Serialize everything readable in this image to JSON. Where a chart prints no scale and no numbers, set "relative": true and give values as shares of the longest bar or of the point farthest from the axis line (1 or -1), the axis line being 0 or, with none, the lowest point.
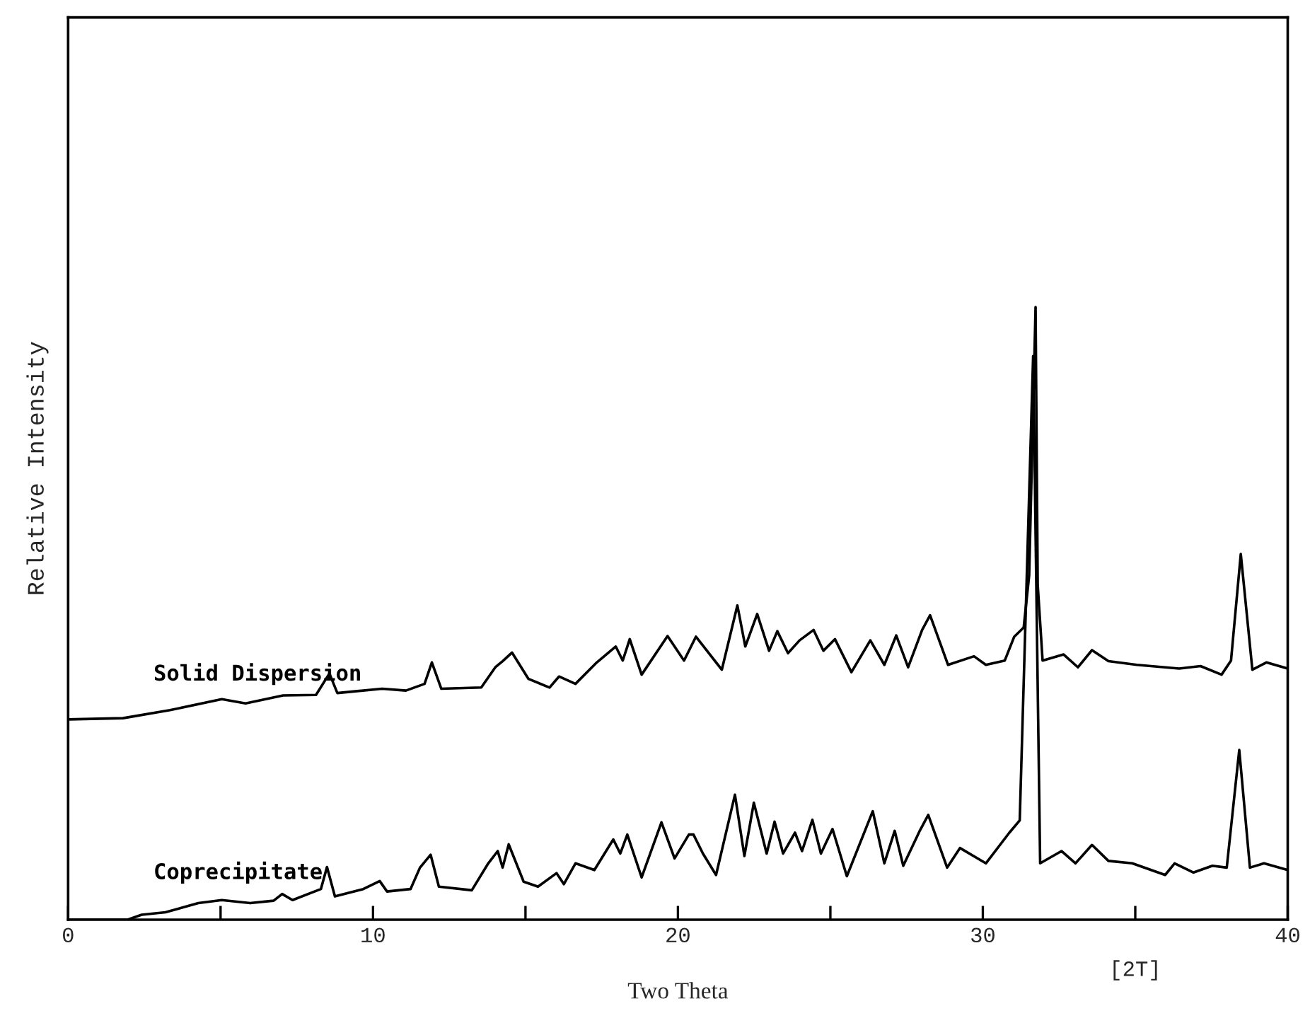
{
  "chart_data": {
    "type": "line",
    "xlabel": "Two Theta",
    "ylabel": "Relative Intensity",
    "relative": true,
    "xlim": [
      0,
      40
    ],
    "xticks": [
      0,
      {
        "value": 5,
        "label": null
      },
      10,
      {
        "value": 15,
        "label": null
      },
      20,
      {
        "value": 25,
        "label": null
      },
      30,
      {
        "value": 35,
        "label": null
      },
      40
    ],
    "annotations": [
      "[2T]"
    ],
    "grid": false,
    "legend": false,
    "marker": "none",
    "line_style": "solid",
    "series": [
      {
        "name": "Solid Dispersion",
        "color": "#000000",
        "x": [
          0,
          1.8,
          3.34,
          5.04,
          5.82,
          7.05,
          8.13,
          8.57,
          8.83,
          10.3,
          11.08,
          11.69,
          11.93,
          12.24,
          13.55,
          14.01,
          14.25,
          14.56,
          15.1,
          15.79,
          16.1,
          16.64,
          17.34,
          17.96,
          18.19,
          18.42,
          18.81,
          19.66,
          20.2,
          20.59,
          21.44,
          21.95,
          22.21,
          22.6,
          22.99,
          23.26,
          23.61,
          23.99,
          24.45,
          24.77,
          25.15,
          25.69,
          26.31,
          26.77,
          27.16,
          27.55,
          28.01,
          28.27,
          28.86,
          29.71,
          30.1,
          30.72,
          31.03,
          31.34,
          31.52,
          31.73,
          31.8,
          31.96,
          32.65,
          33.12,
          33.58,
          34.12,
          35.05,
          36.44,
          37.14,
          37.83,
          38.14,
          38.46,
          38.84,
          39.3,
          40
        ],
        "values": [
          0.327,
          0.329,
          0.342,
          0.36,
          0.353,
          0.366,
          0.367,
          0.402,
          0.37,
          0.377,
          0.374,
          0.385,
          0.42,
          0.377,
          0.379,
          0.412,
          0.422,
          0.436,
          0.393,
          0.379,
          0.397,
          0.385,
          0.42,
          0.446,
          0.423,
          0.458,
          0.4,
          0.463,
          0.423,
          0.462,
          0.408,
          0.513,
          0.446,
          0.499,
          0.439,
          0.471,
          0.435,
          0.456,
          0.473,
          0.439,
          0.458,
          0.404,
          0.456,
          0.416,
          0.464,
          0.412,
          0.473,
          0.497,
          0.416,
          0.43,
          0.416,
          0.423,
          0.462,
          0.477,
          0.562,
          1.0,
          0.547,
          0.423,
          0.433,
          0.412,
          0.44,
          0.422,
          0.416,
          0.41,
          0.414,
          0.4,
          0.423,
          0.597,
          0.408,
          0.42,
          0.41
        ]
      },
      {
        "name": "Coprecipitate",
        "color": "#000000",
        "x": [
          0,
          1.95,
          2.41,
          3.19,
          4.27,
          5.04,
          5.97,
          6.74,
          7.02,
          7.36,
          8.29,
          8.49,
          8.75,
          9.68,
          10.22,
          10.46,
          11.23,
          11.54,
          11.89,
          12.16,
          13.24,
          13.78,
          14.09,
          14.25,
          14.45,
          14.94,
          15.41,
          16.02,
          16.26,
          16.64,
          17.26,
          17.88,
          18.11,
          18.34,
          18.81,
          19.46,
          19.89,
          20.36,
          20.51,
          20.82,
          21.25,
          21.87,
          22.18,
          22.49,
          22.91,
          23.17,
          23.45,
          23.84,
          24.07,
          24.41,
          24.69,
          25.07,
          25.54,
          26.39,
          26.77,
          27.11,
          27.39,
          27.94,
          28.21,
          28.83,
          29.25,
          30.1,
          30.87,
          31.21,
          31.65,
          31.88,
          32.58,
          33.04,
          33.58,
          34.12,
          34.9,
          35.98,
          36.29,
          36.91,
          37.53,
          38.0,
          38.41,
          38.76,
          39.22,
          40
        ],
        "values": [
          0,
          0,
          0.008,
          0.012,
          0.027,
          0.032,
          0.027,
          0.031,
          0.042,
          0.032,
          0.05,
          0.086,
          0.038,
          0.05,
          0.063,
          0.046,
          0.05,
          0.085,
          0.106,
          0.054,
          0.048,
          0.092,
          0.112,
          0.085,
          0.123,
          0.062,
          0.054,
          0.076,
          0.058,
          0.092,
          0.081,
          0.131,
          0.108,
          0.139,
          0.069,
          0.159,
          0.1,
          0.139,
          0.139,
          0.108,
          0.073,
          0.204,
          0.104,
          0.191,
          0.108,
          0.16,
          0.108,
          0.142,
          0.112,
          0.163,
          0.108,
          0.148,
          0.071,
          0.177,
          0.092,
          0.145,
          0.088,
          0.146,
          0.171,
          0.085,
          0.117,
          0.092,
          0.142,
          0.162,
          0.92,
          0.092,
          0.112,
          0.092,
          0.122,
          0.096,
          0.092,
          0.073,
          0.092,
          0.077,
          0.088,
          0.085,
          0.277,
          0.085,
          0.092,
          0.081
        ]
      }
    ]
  }
}
